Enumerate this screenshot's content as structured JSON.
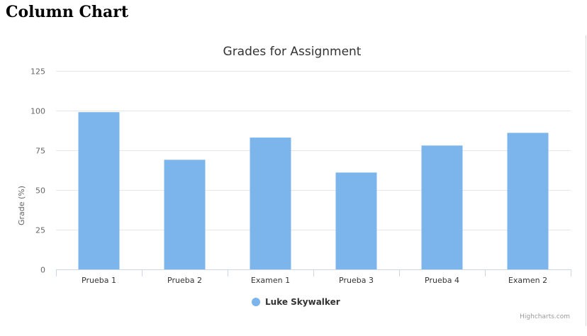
{
  "page": {
    "heading": "Column Chart"
  },
  "chart_data": {
    "type": "bar",
    "title": "Grades for Assignment",
    "xlabel": "",
    "ylabel": "Grade (%)",
    "categories": [
      "Prueba 1",
      "Prueba 2",
      "Examen 1",
      "Prueba 3",
      "Prueba 4",
      "Examen 2"
    ],
    "series": [
      {
        "name": "Luke Skywalker",
        "values": [
          99,
          69,
          83,
          61,
          78,
          86
        ],
        "color": "#7cb5ec"
      }
    ],
    "ylim": [
      0,
      125
    ],
    "yticks": [
      0,
      25,
      50,
      75,
      100,
      125
    ],
    "grid": true,
    "legend_position": "bottom-center",
    "credits": "Highcharts.com"
  },
  "colors": {
    "grid": "#e6e6e6",
    "axis": "#ccd6eb",
    "text": "#333333",
    "label": "#666666",
    "credits": "#999999"
  }
}
